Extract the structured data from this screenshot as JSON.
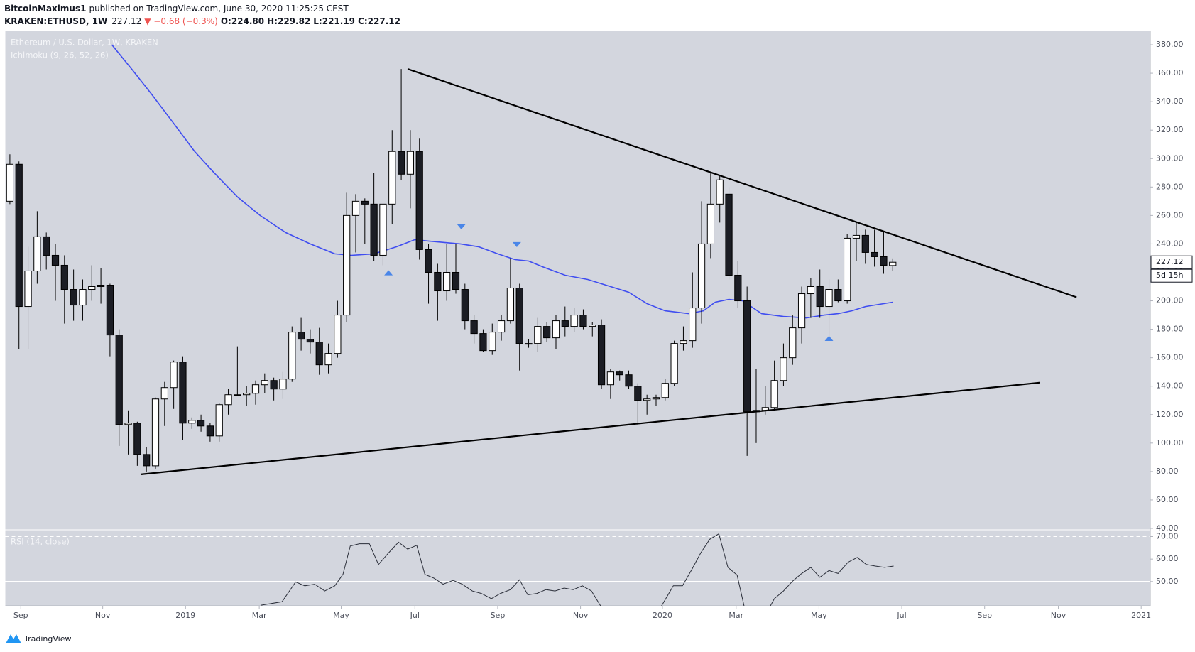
{
  "header": {
    "publisher": "BitcoinMaximus1",
    "published": "published on TradingView.com, June 30, 2020 11:25:25 CEST",
    "symbol": "KRAKEN:ETHUSD, 1W",
    "last": "227.12",
    "change": "▼ −0.68 (−0.3%)",
    "open": "O:224.80",
    "high": "H:229.82",
    "low": "L:221.19",
    "close": "C:227.12"
  },
  "footer": "TradingView",
  "chart_data": {
    "type": "candlestick",
    "title": "Ethereum / U.S. Dollar, 1W, KRAKEN",
    "indicator": "Ichimoku (9, 26, 52, 26)",
    "countdown": "5d 15h",
    "up_color": "#ffffff",
    "down_color": "#1b1d24",
    "border_color": "#000000",
    "categories": [
      null,
      null,
      null,
      null,
      null,
      null,
      null,
      null,
      null,
      null,
      null,
      null,
      null,
      null,
      null,
      null,
      null,
      null,
      null,
      null,
      null,
      null,
      null,
      null,
      null,
      null,
      null,
      null,
      null,
      null,
      null,
      null,
      null,
      null,
      null,
      null,
      null,
      null,
      null,
      null,
      null,
      null,
      null,
      null,
      null,
      null,
      null,
      null,
      null,
      null,
      null,
      null,
      null,
      null,
      null,
      null,
      null,
      null,
      null,
      null,
      null,
      null,
      null,
      null,
      null,
      null,
      null,
      null,
      null,
      null,
      null,
      null,
      null,
      null,
      null,
      null,
      null,
      null,
      null,
      null,
      null,
      null,
      null,
      null,
      null,
      null,
      null,
      null,
      null,
      null,
      null,
      null,
      null,
      null,
      null,
      null,
      null,
      null
    ],
    "open": [
      270,
      296,
      196,
      221,
      245,
      232,
      225,
      208,
      197,
      208,
      210,
      211,
      176,
      113,
      114,
      92,
      84,
      131,
      139,
      157,
      114,
      116,
      112,
      105,
      127,
      134,
      134,
      135,
      141,
      144,
      138,
      145,
      178,
      173,
      171,
      155,
      163,
      190,
      260,
      270,
      268,
      232,
      268,
      305,
      289,
      305,
      236,
      220,
      207,
      220,
      208,
      186,
      177,
      165,
      178,
      186,
      209,
      170,
      170,
      182,
      174,
      186,
      182,
      190,
      182,
      183,
      141,
      150,
      148,
      140,
      130,
      131,
      132,
      142,
      170,
      172,
      195,
      240,
      268,
      275,
      218,
      200,
      122,
      123,
      125,
      144,
      160,
      181,
      205,
      210,
      196,
      208,
      200,
      244,
      246,
      234,
      231,
      224.8
    ],
    "high": [
      303,
      298,
      238,
      263,
      248,
      240,
      232,
      222,
      215,
      225,
      223,
      212,
      180,
      123,
      115,
      97,
      132,
      143,
      158,
      161,
      118,
      120,
      114,
      128,
      138,
      168,
      140,
      144,
      149,
      146,
      150,
      182,
      188,
      180,
      181,
      170,
      200,
      276,
      275,
      272,
      290,
      268,
      320,
      363,
      320,
      314,
      240,
      226,
      240,
      240,
      212,
      190,
      180,
      184,
      190,
      230,
      212,
      173,
      188,
      185,
      190,
      196,
      195,
      194,
      185,
      187,
      152,
      151,
      151,
      142,
      134,
      134,
      145,
      172,
      182,
      220,
      270,
      290,
      288,
      280,
      228,
      210,
      152,
      140,
      158,
      170,
      190,
      210,
      216,
      222,
      215,
      215,
      247,
      255,
      250,
      250,
      249,
      229.82
    ],
    "low": [
      268,
      166,
      166,
      212,
      222,
      200,
      184,
      186,
      186,
      200,
      198,
      161,
      98,
      92,
      84,
      80,
      82,
      112,
      124,
      102,
      110,
      108,
      101,
      101,
      120,
      133,
      126,
      127,
      135,
      130,
      131,
      143,
      165,
      163,
      148,
      149,
      160,
      185,
      234,
      240,
      228,
      225,
      254,
      285,
      265,
      229,
      198,
      186,
      200,
      205,
      180,
      170,
      164,
      162,
      172,
      184,
      151,
      167,
      164,
      171,
      166,
      175,
      178,
      180,
      175,
      138,
      131,
      144,
      138,
      113,
      120,
      126,
      130,
      140,
      165,
      167,
      184,
      230,
      255,
      215,
      195,
      91,
      100,
      120,
      123,
      140,
      155,
      170,
      188,
      188,
      174,
      199,
      198,
      228,
      226,
      224,
      219,
      221.19
    ],
    "close": [
      296,
      196,
      221,
      245,
      232,
      225,
      208,
      197,
      208,
      210,
      211,
      176,
      113,
      114,
      92,
      84,
      131,
      139,
      157,
      114,
      116,
      112,
      105,
      127,
      134,
      134,
      135,
      141,
      144,
      138,
      145,
      178,
      173,
      171,
      155,
      163,
      190,
      260,
      270,
      268,
      232,
      268,
      305,
      289,
      305,
      236,
      220,
      207,
      220,
      208,
      186,
      177,
      165,
      178,
      186,
      209,
      170,
      170,
      182,
      174,
      186,
      182,
      190,
      182,
      183,
      141,
      150,
      148,
      140,
      130,
      131,
      132,
      142,
      170,
      172,
      195,
      240,
      268,
      285,
      218,
      200,
      122,
      123,
      125,
      144,
      160,
      181,
      205,
      210,
      196,
      208,
      200,
      244,
      246,
      234,
      231,
      225,
      227.12
    ],
    "ichimoku_line": {
      "color": "#3f4df0",
      "x": [
        11.2,
        13.5,
        15.6,
        18.2,
        20.3,
        22.3,
        25,
        27.5,
        30.3,
        33,
        35.7,
        37.5,
        40,
        42.5,
        44.5,
        46,
        49.5,
        51.5,
        53.6,
        55.5,
        57,
        58.5,
        61,
        63.5,
        66,
        68,
        70,
        72,
        74.6,
        76.2,
        77.5,
        79,
        80.5,
        82.6,
        85,
        87.5,
        89.5,
        91,
        92.5,
        94,
        97
      ],
      "values": [
        380,
        362,
        345,
        323,
        305,
        291,
        273,
        260,
        248,
        240,
        233,
        232,
        233,
        238,
        243,
        242,
        240,
        238,
        233,
        229,
        228,
        224,
        218,
        215,
        210,
        206,
        198,
        193,
        191,
        193,
        199,
        201,
        200,
        191,
        189,
        188,
        190,
        191,
        193,
        196,
        199
      ]
    },
    "trendlines": [
      {
        "color": "#000000",
        "x": [
          43.7,
          117.2
        ],
        "values": [
          363,
          202.5
        ]
      },
      {
        "color": "#000000",
        "x": [
          14.4,
          113.2
        ],
        "values": [
          78,
          142.5
        ]
      }
    ],
    "markers": [
      {
        "x": 41.6,
        "value": 219.7,
        "direction": "up"
      },
      {
        "x": 49.6,
        "value": 252,
        "direction": "down"
      },
      {
        "x": 55.7,
        "value": 239.5,
        "direction": "down"
      },
      {
        "x": 90,
        "value": 173.6,
        "direction": "up"
      }
    ],
    "marker_color": "#4a86e8",
    "xlim": [
      -0.5,
      125.3
    ],
    "xticks": [
      {
        "value": 1.2,
        "label": "Sep"
      },
      {
        "value": 10.2,
        "label": "Nov"
      },
      {
        "value": 19.3,
        "label": "2019"
      },
      {
        "value": 27.4,
        "label": "Mar"
      },
      {
        "value": 36.4,
        "label": "May"
      },
      {
        "value": 44.5,
        "label": "Jul"
      },
      {
        "value": 53.6,
        "label": "Sep"
      },
      {
        "value": 62.7,
        "label": "Nov"
      },
      {
        "value": 71.7,
        "label": "2020"
      },
      {
        "value": 79.8,
        "label": "Mar"
      },
      {
        "value": 88.9,
        "label": "May"
      },
      {
        "value": 98,
        "label": "Jul"
      },
      {
        "value": 107.1,
        "label": "Sep"
      },
      {
        "value": 115.2,
        "label": "Nov"
      },
      {
        "value": 124.3,
        "label": "2021"
      }
    ],
    "ylim": [
      39,
      390
    ],
    "yticks": [
      {
        "value": 380,
        "label": "380.00"
      },
      {
        "value": 360,
        "label": "360.00"
      },
      {
        "value": 340,
        "label": "340.00"
      },
      {
        "value": 320,
        "label": "320.00"
      },
      {
        "value": 300,
        "label": "300.00"
      },
      {
        "value": 280,
        "label": "280.00"
      },
      {
        "value": 260,
        "label": "260.00"
      },
      {
        "value": 240,
        "label": "240.00"
      },
      {
        "value": 220,
        "label": "220.00"
      },
      {
        "value": 200,
        "label": "200.00"
      },
      {
        "value": 180,
        "label": "180.00"
      },
      {
        "value": 160,
        "label": "160.00"
      },
      {
        "value": 140,
        "label": "140.00"
      },
      {
        "value": 120,
        "label": "120.00"
      },
      {
        "value": 100,
        "label": "100.00"
      },
      {
        "value": 80,
        "label": "80.00"
      },
      {
        "value": 60,
        "label": "60.00"
      },
      {
        "value": 40,
        "label": "40.00"
      }
    ],
    "grid": false,
    "rsi": {
      "title": "RSI (14, close)",
      "color": "#2a2e39",
      "x": [
        27.6,
        29.9,
        31.4,
        32.4,
        33.5,
        34.6,
        35.7,
        36.6,
        37.4,
        38.4,
        39.5,
        40.5,
        41.6,
        42.7,
        43.7,
        44.7,
        45.6,
        46.6,
        47.6,
        48.7,
        49.7,
        50.8,
        51.8,
        52.9,
        53.9,
        55.0,
        56.0,
        56.9,
        57.9,
        58.9,
        59.9,
        60.9,
        61.9,
        62.9,
        63.9,
        64.9,
        65.5,
        null,
        71.0,
        72.9,
        73.9,
        75.0,
        75.9,
        76.9,
        77.9,
        78.9,
        79.9,
        80.9,
        null,
        83.0,
        84.0,
        85.0,
        86.0,
        87.0,
        88.0,
        89.0,
        90.0,
        91.0,
        92.1,
        93.1,
        94.1,
        95.1,
        96.1,
        97.1
      ],
      "values": [
        39.5,
        41,
        49.8,
        48.1,
        48.8,
        45.8,
        48.1,
        53.2,
        65.8,
        66.8,
        66.8,
        57.6,
        62.7,
        67.5,
        64.4,
        66.1,
        53.2,
        51.5,
        48.8,
        50.5,
        48.8,
        45.8,
        44.7,
        42.4,
        44.7,
        46.4,
        50.8,
        44.1,
        44.7,
        46.4,
        45.8,
        47.1,
        46.4,
        48.1,
        45.8,
        39.2,
        35,
        null,
        35,
        48.1,
        48.1,
        55.9,
        62.7,
        68.8,
        71.2,
        56.3,
        52.9,
        35,
        null,
        35,
        42.4,
        45.8,
        50.2,
        53.6,
        56.3,
        51.9,
        54.9,
        53.6,
        58.6,
        60.7,
        57.6,
        56.9,
        56.3,
        56.9
      ],
      "ylim": [
        39.2,
        73
      ],
      "yticks": [
        {
          "value": 70,
          "label": "70.00"
        },
        {
          "value": 60,
          "label": "60.00"
        },
        {
          "value": 50,
          "label": "50.00"
        }
      ]
    }
  }
}
